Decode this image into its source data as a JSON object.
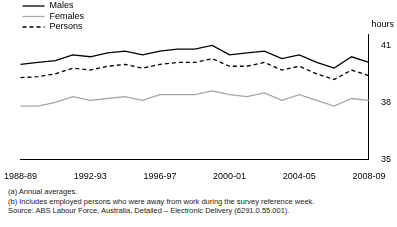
{
  "chart_data": {
    "type": "line",
    "y_label": "hours",
    "categories": [
      "1988-89",
      null,
      null,
      null,
      "1992-93",
      null,
      null,
      null,
      "1996-97",
      null,
      null,
      null,
      "2000-01",
      null,
      null,
      null,
      "2004-05",
      null,
      null,
      null,
      "2008-09"
    ],
    "series": [
      {
        "name": "Males",
        "color": "#000000",
        "line_style": "solid",
        "values": [
          40.0,
          40.1,
          40.2,
          40.5,
          40.4,
          40.6,
          40.7,
          40.5,
          40.7,
          40.8,
          40.8,
          41.0,
          40.5,
          40.6,
          40.7,
          40.3,
          40.5,
          40.1,
          39.8,
          40.4,
          40.1
        ]
      },
      {
        "name": "Females",
        "color": "#a6a6a6",
        "line_style": "solid",
        "values": [
          37.8,
          37.8,
          38.0,
          38.3,
          38.1,
          38.2,
          38.3,
          38.1,
          38.4,
          38.4,
          38.4,
          38.6,
          38.4,
          38.3,
          38.5,
          38.1,
          38.4,
          38.1,
          37.8,
          38.2,
          38.1
        ]
      },
      {
        "name": "Persons",
        "color": "#000000",
        "line_style": "dashed",
        "values": [
          39.3,
          39.35,
          39.5,
          39.8,
          39.7,
          39.9,
          40.0,
          39.8,
          40.0,
          40.1,
          40.1,
          40.3,
          39.9,
          39.9,
          40.1,
          39.7,
          39.9,
          39.5,
          39.2,
          39.7,
          39.4
        ]
      }
    ],
    "ylim": [
      35,
      41.6
    ],
    "yticks": [
      35,
      38,
      41
    ],
    "grid": false,
    "legend": "top-left",
    "notes": [
      "(a) Annual averages.",
      "(b) Includes employed persons who were away from work during the survey reference week.",
      "Source: ABS Labour Force, Australia, Detailed – Electronic Delivery (6291.0.55.001)."
    ]
  }
}
